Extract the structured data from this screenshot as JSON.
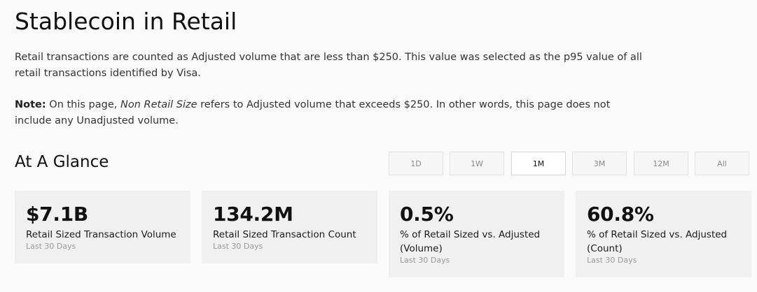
{
  "page": {
    "title": "Stablecoin in Retail",
    "intro": "Retail transactions are counted as Adjusted volume that are less than $250. This value was selected as the p95 value of all retail transactions identified by Visa.",
    "note_label": "Note:",
    "note_pre": " On this page, ",
    "note_em": "Non Retail Size",
    "note_post": " refers to Adjusted volume that exceeds $250. In other words, this page does not include any Unadjusted volume."
  },
  "glance": {
    "heading": "At A Glance",
    "ranges": [
      "1D",
      "1W",
      "1M",
      "3M",
      "12M",
      "All"
    ],
    "selected_range": "1M"
  },
  "cards": [
    {
      "value": "$7.1B",
      "label": "Retail Sized Transaction Volume",
      "period": "Last 30 Days"
    },
    {
      "value": "134.2M",
      "label": "Retail Sized Transaction Count",
      "period": "Last 30 Days"
    },
    {
      "value": "0.5%",
      "label": "% of Retail Sized vs. Adjusted (Volume)",
      "period": "Last 30 Days"
    },
    {
      "value": "60.8%",
      "label": "% of Retail Sized vs. Adjusted (Count)",
      "period": "Last 30 Days"
    }
  ]
}
